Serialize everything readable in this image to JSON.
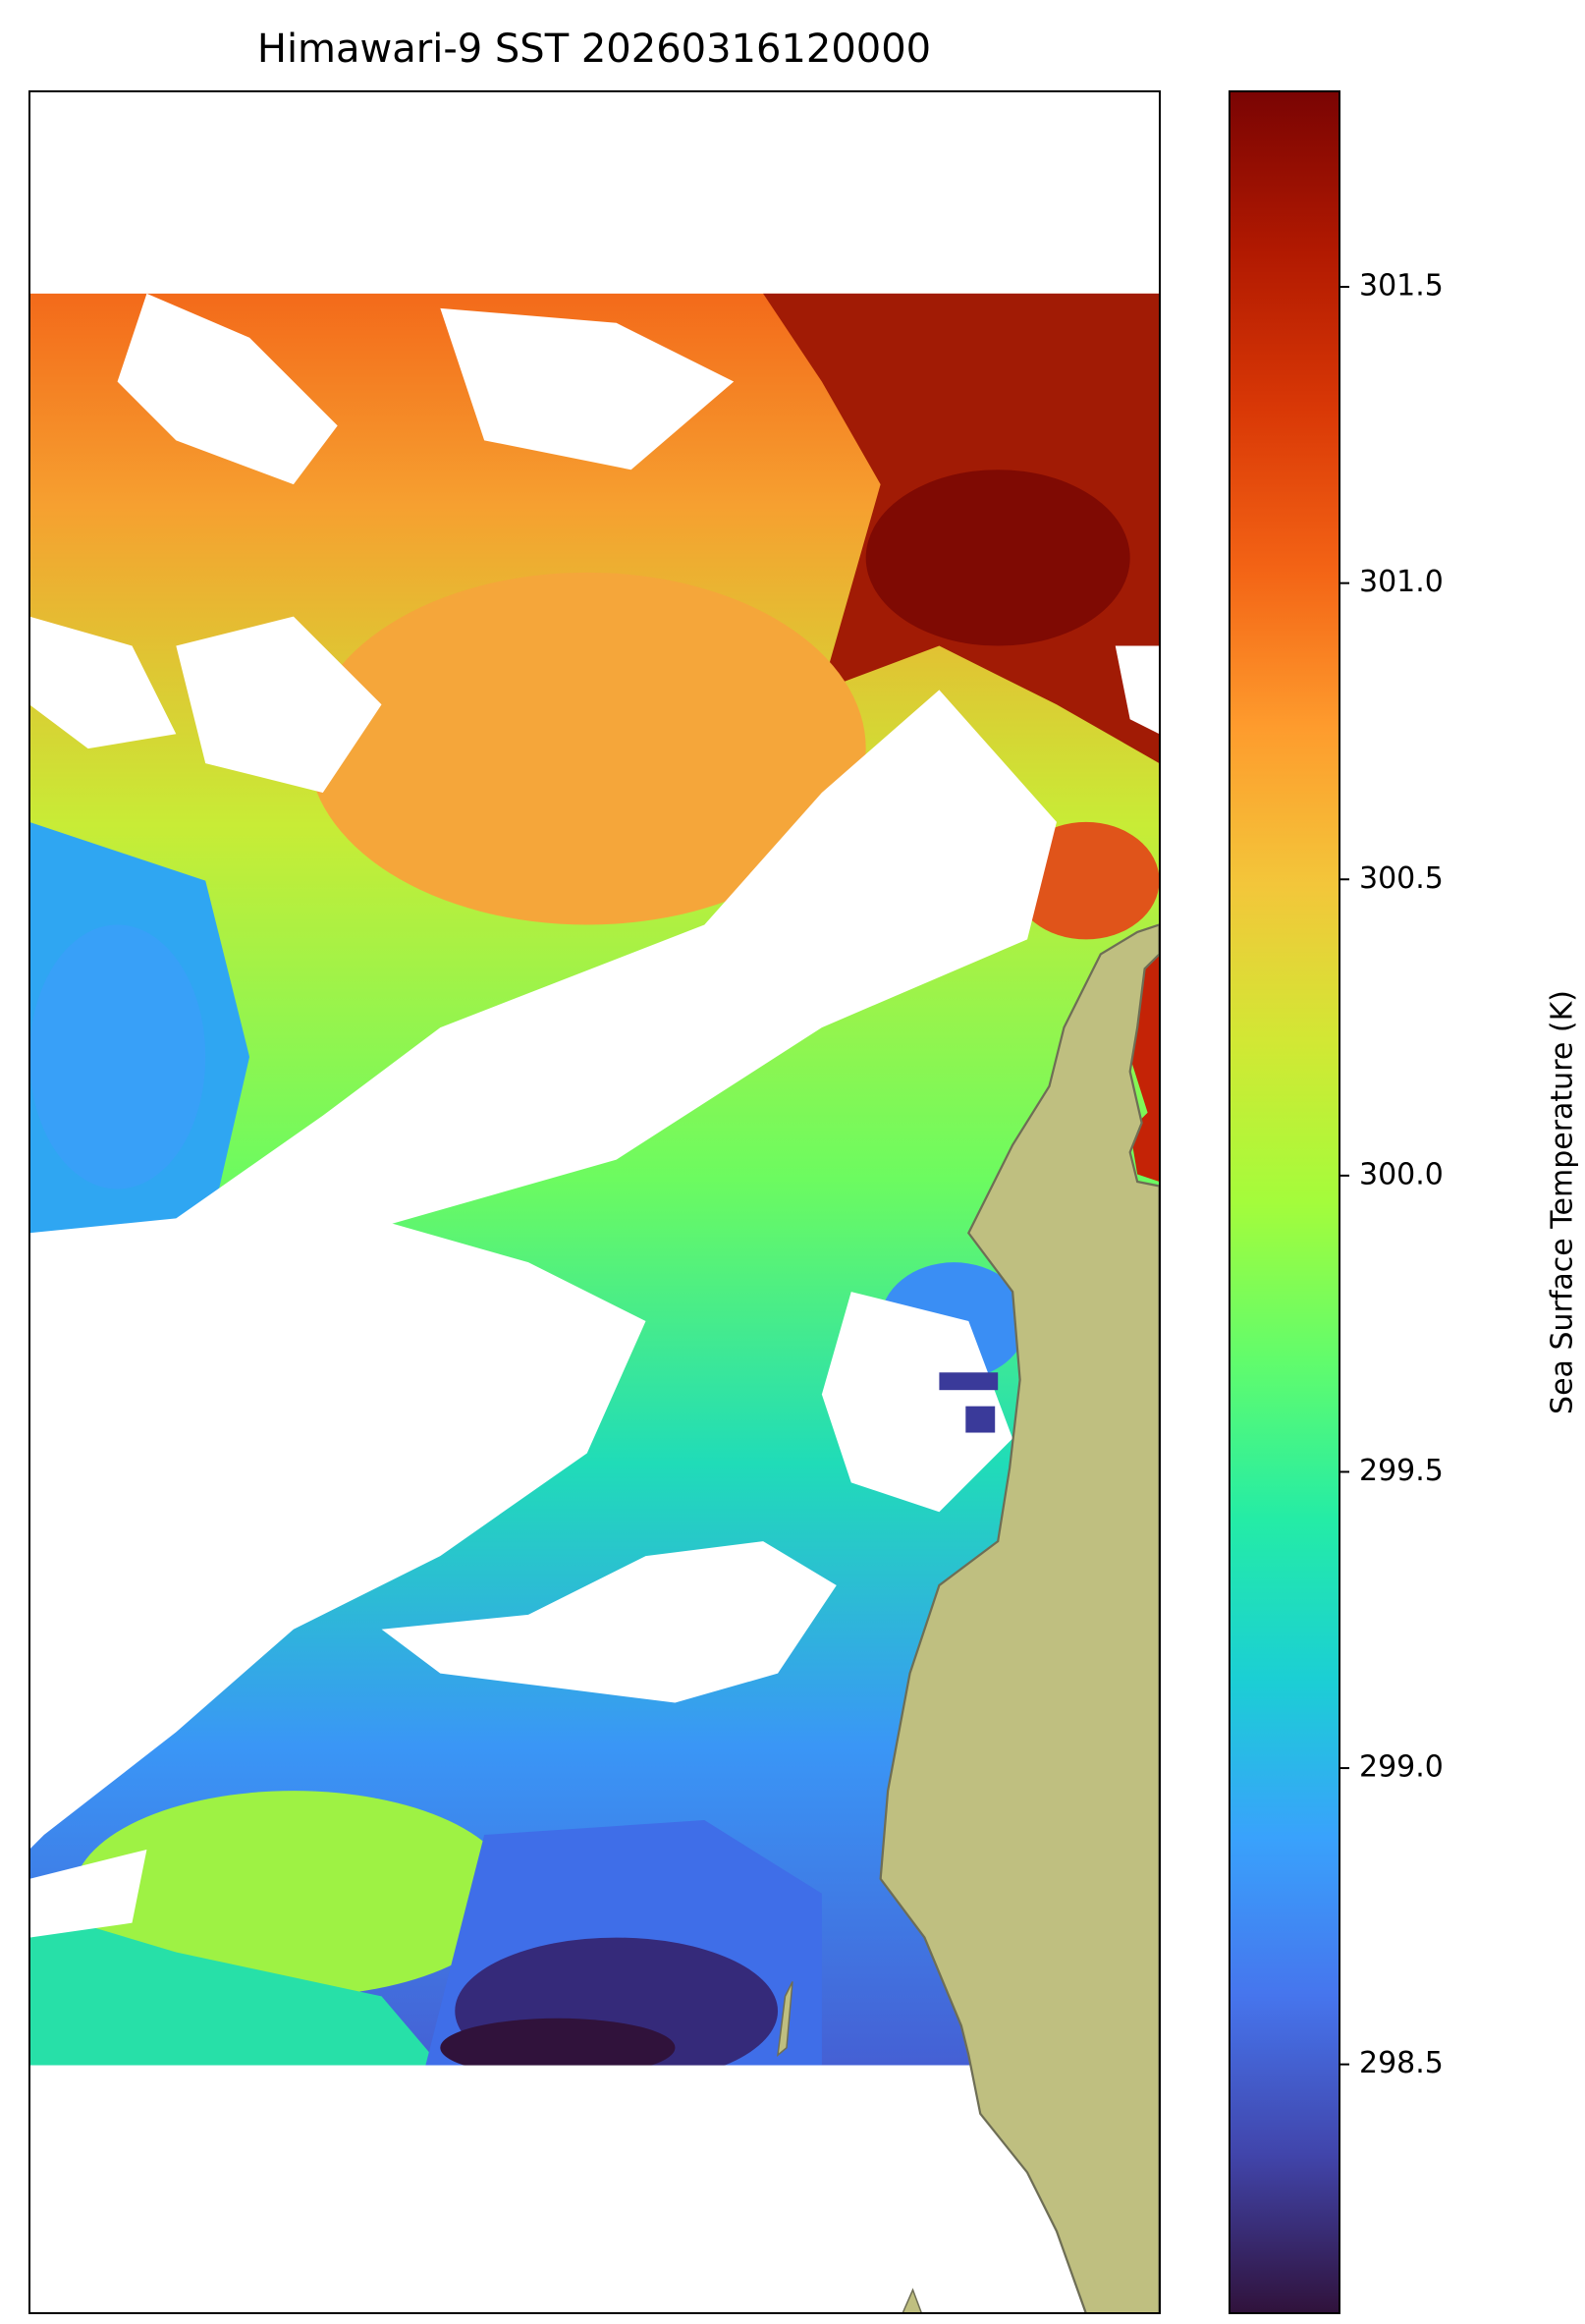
{
  "chart_data": {
    "type": "heatmap",
    "title": "Himawari-9 SST 20260316120000",
    "colorbar": {
      "label": "Sea Surface Temperature (K)",
      "colormap": "turbo",
      "clim": [
        298.08,
        301.83
      ],
      "ticks": [
        298.5,
        {
          "value": 299,
          "label": "299.0"
        },
        299.5,
        {
          "value": 300,
          "label": "300.0"
        },
        300.5,
        {
          "value": 301,
          "label": "301.0"
        },
        301.5
      ]
    }
  }
}
